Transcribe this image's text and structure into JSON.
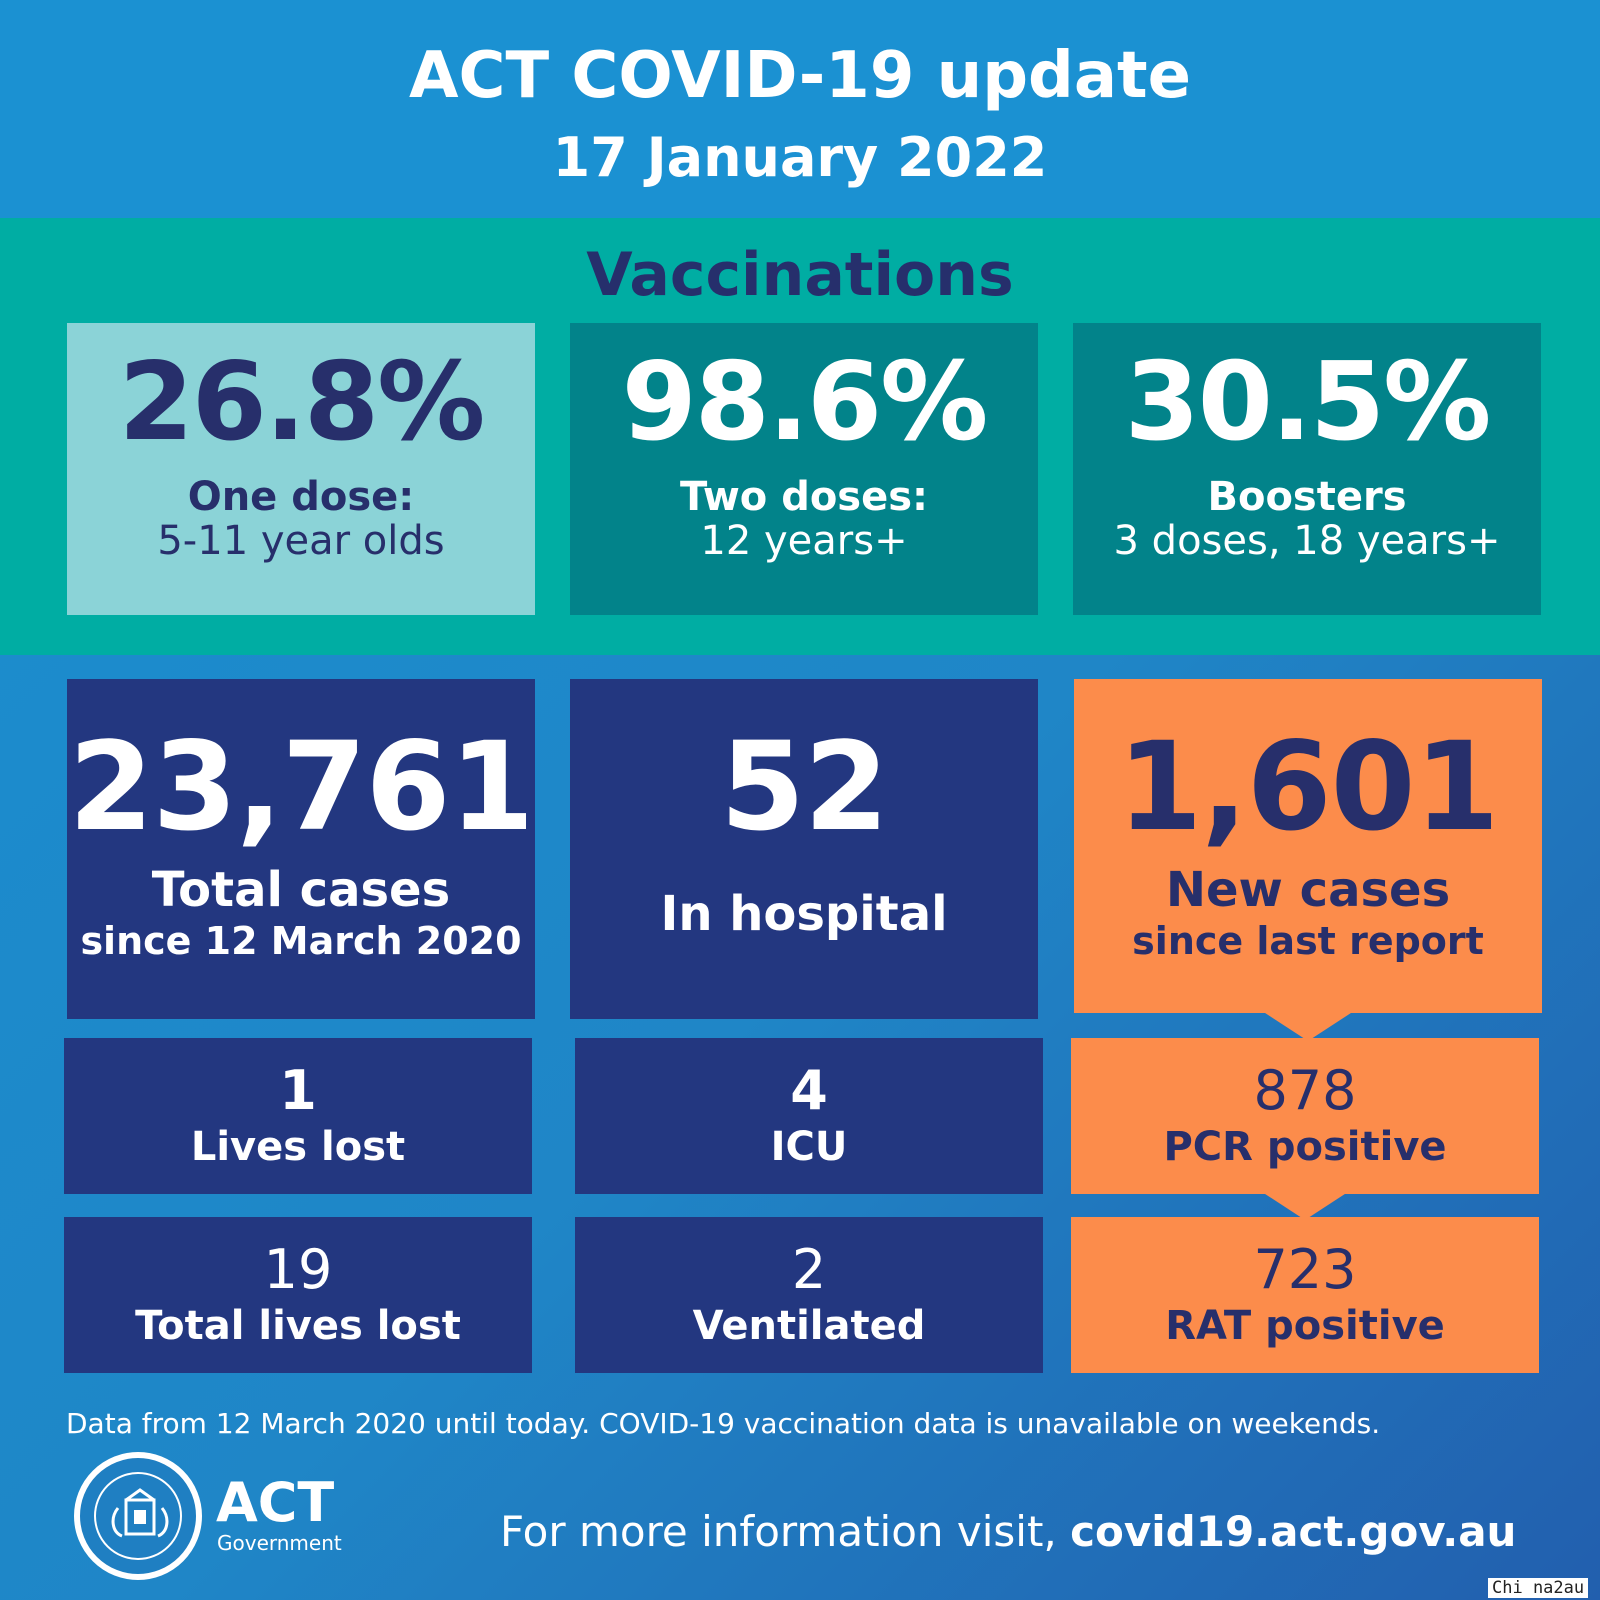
{
  "header": {
    "title": "ACT COVID-19 update",
    "date": "17 January 2022"
  },
  "vaccinations": {
    "title": "Vaccinations",
    "cards": [
      {
        "value": "26.8%",
        "line1": "One dose:",
        "line2": "5-11 year olds"
      },
      {
        "value": "98.6%",
        "line1": "Two doses:",
        "line2": "12 years+"
      },
      {
        "value": "30.5%",
        "line1": "Boosters",
        "line2": "3 doses, 18 years+"
      }
    ]
  },
  "stats": {
    "total_cases": {
      "value": "23,761",
      "line1": "Total cases",
      "line2": "since 12 March 2020"
    },
    "in_hospital": {
      "value": "52",
      "line1": "In hospital"
    },
    "new_cases": {
      "value": "1,601",
      "line1": "New cases",
      "line2": "since last report"
    },
    "lives_lost": {
      "value": "1",
      "label": "Lives lost"
    },
    "icu": {
      "value": "4",
      "label": "ICU"
    },
    "pcr_positive": {
      "value": "878",
      "label": "PCR positive"
    },
    "total_lives_lost": {
      "value": "19",
      "label": "Total lives lost"
    },
    "ventilated": {
      "value": "2",
      "label": "Ventilated"
    },
    "rat_positive": {
      "value": "723",
      "label": "RAT positive"
    }
  },
  "footer": {
    "note": "Data from 12 March 2020 until today.  COVID-19 vaccination data is unavailable on weekends.",
    "logo_text": "ACT",
    "logo_subtext": "Government",
    "more_info_prefix": "For more information visit, ",
    "more_info_url": "covid19.act.gov.au",
    "watermark": "Chi na2au"
  },
  "colors": {
    "header_blue": "#1b91d2",
    "teal_band": "#00ada3",
    "light_teal_card": "#8bd3d7",
    "dark_teal_card": "#02838a",
    "navy_card": "#233780",
    "orange_card": "#fc8c4b",
    "dark_text": "#272f6b"
  }
}
